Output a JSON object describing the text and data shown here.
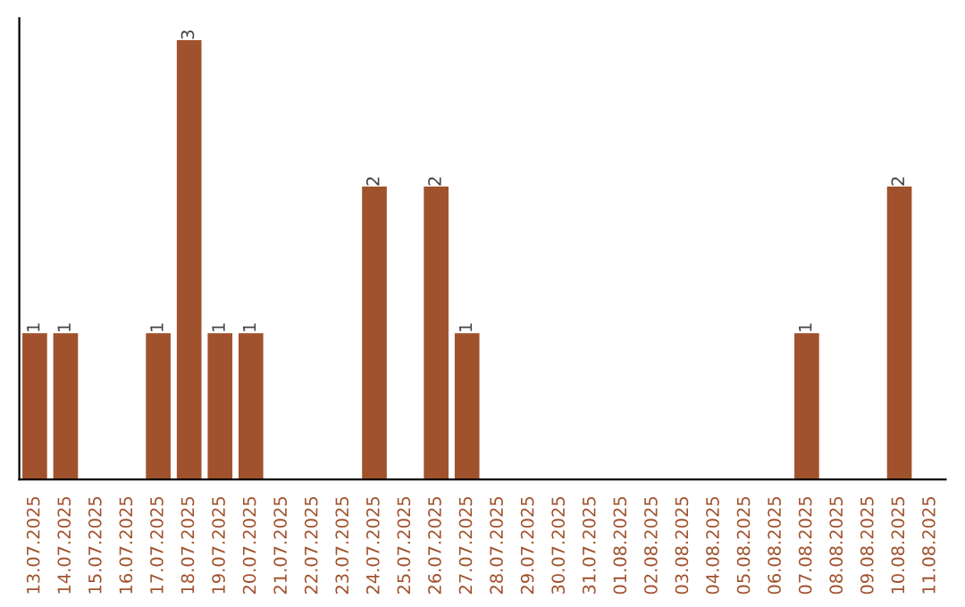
{
  "chart_data": {
    "type": "bar",
    "categories": [
      "13.07.2025",
      "14.07.2025",
      "15.07.2025",
      "16.07.2025",
      "17.07.2025",
      "18.07.2025",
      "19.07.2025",
      "20.07.2025",
      "21.07.2025",
      "22.07.2025",
      "23.07.2025",
      "24.07.2025",
      "25.07.2025",
      "26.07.2025",
      "27.07.2025",
      "28.07.2025",
      "29.07.2025",
      "30.07.2025",
      "31.07.2025",
      "01.08.2025",
      "02.08.2025",
      "03.08.2025",
      "04.08.2025",
      "05.08.2025",
      "06.08.2025",
      "07.08.2025",
      "08.08.2025",
      "09.08.2025",
      "10.08.2025",
      "11.08.2025"
    ],
    "values": [
      1,
      1,
      0,
      0,
      1,
      3,
      1,
      1,
      0,
      0,
      0,
      2,
      0,
      2,
      1,
      0,
      0,
      0,
      0,
      0,
      0,
      0,
      0,
      0,
      0,
      1,
      0,
      0,
      2,
      0
    ],
    "value_labels": [
      "1",
      "1",
      null,
      null,
      "1",
      "3",
      "1",
      "1",
      null,
      null,
      null,
      "2",
      null,
      "2",
      "1",
      null,
      null,
      null,
      null,
      null,
      null,
      null,
      null,
      null,
      null,
      "1",
      null,
      null,
      "2",
      null
    ],
    "color": "#a0522d",
    "tick_labels": "x",
    "grid": false
  }
}
